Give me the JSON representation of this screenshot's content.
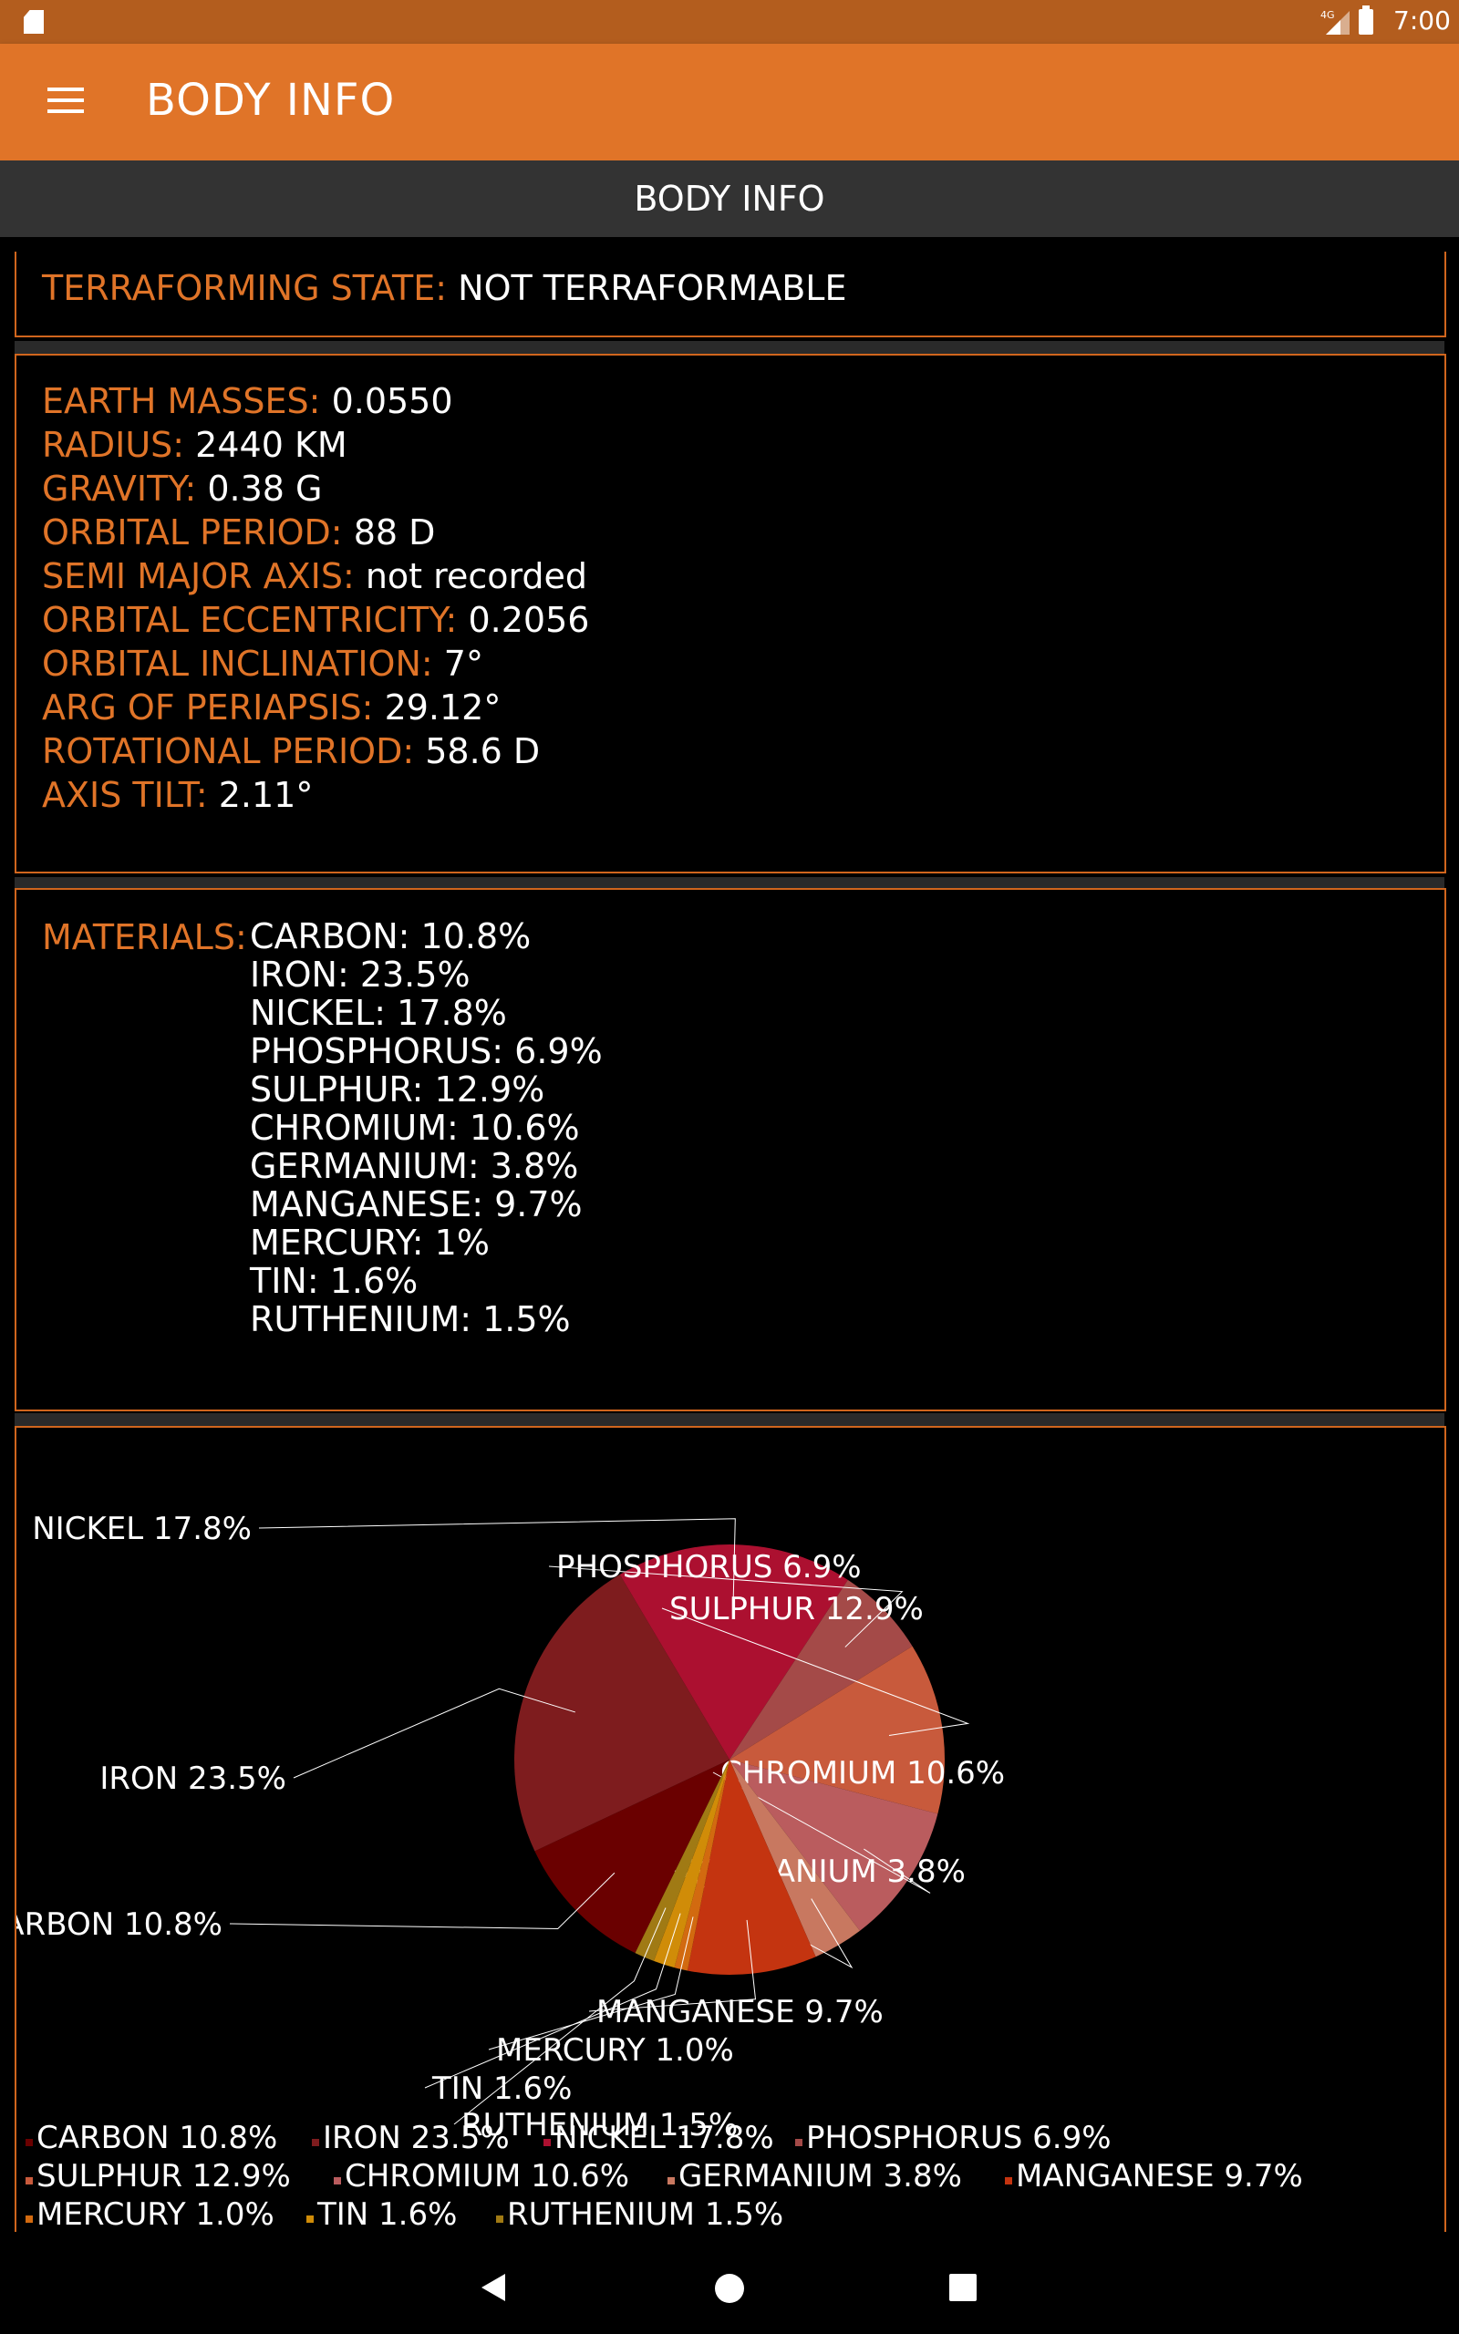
{
  "status": {
    "network": "4G",
    "time": "7:00"
  },
  "appbar": {
    "title": "BODY INFO"
  },
  "subbar": {
    "title": "BODY INFO"
  },
  "terraforming": {
    "label": "TERRAFORMING STATE:",
    "value": "NOT TERRAFORMABLE"
  },
  "properties": [
    {
      "label": "EARTH MASSES:",
      "value": "0.0550"
    },
    {
      "label": "RADIUS:",
      "value": "2440 KM"
    },
    {
      "label": "GRAVITY:",
      "value": "0.38 G"
    },
    {
      "label": "ORBITAL PERIOD:",
      "value": "88 D"
    },
    {
      "label": "SEMI MAJOR AXIS:",
      "value": "not recorded"
    },
    {
      "label": "ORBITAL ECCENTRICITY:",
      "value": "0.2056"
    },
    {
      "label": "ORBITAL INCLINATION:",
      "value": "7°"
    },
    {
      "label": "ARG OF PERIAPSIS:",
      "value": "29.12°"
    },
    {
      "label": "ROTATIONAL PERIOD:",
      "value": "58.6 D"
    },
    {
      "label": "AXIS TILT:",
      "value": "2.11°"
    }
  ],
  "materials": {
    "label": "MATERIALS:",
    "items": [
      "CARBON: 10.8%",
      "IRON: 23.5%",
      "NICKEL: 17.8%",
      "PHOSPHORUS: 6.9%",
      "SULPHUR: 12.9%",
      "CHROMIUM: 10.6%",
      "GERMANIUM: 3.8%",
      "MANGANESE: 9.7%",
      "MERCURY: 1%",
      "TIN: 1.6%",
      "RUTHENIUM: 1.5%"
    ]
  },
  "chart_data": {
    "type": "pie",
    "categories": [
      "CARBON",
      "IRON",
      "NICKEL",
      "PHOSPHORUS",
      "SULPHUR",
      "CHROMIUM",
      "GERMANIUM",
      "MANGANESE",
      "MERCURY",
      "TIN",
      "RUTHENIUM"
    ],
    "values": [
      10.8,
      23.5,
      17.8,
      6.9,
      12.9,
      10.6,
      3.8,
      9.7,
      1.0,
      1.6,
      1.5
    ],
    "slice_labels": [
      "CARBON 10.8%",
      "IRON 23.5%",
      "NICKEL 17.8%",
      "PHOSPHORUS 6.9%",
      "SULPHUR 12.9%",
      "CHROMIUM 10.6%",
      "GERMANIUM 3.8%",
      "MANGANESE 9.7%",
      "MERCURY 1.0%",
      "TIN 1.6%",
      "RUTHENIUM 1.5%"
    ],
    "colors": [
      "#6a0000",
      "#7e1c1e",
      "#ac1030",
      "#a44a48",
      "#c85a3c",
      "#ba5c5e",
      "#c87860",
      "#c43410",
      "#d26a10",
      "#d08c08",
      "#a07a14"
    ],
    "legend_position": "bottom-left",
    "legend_text_color": "#ffffff"
  }
}
